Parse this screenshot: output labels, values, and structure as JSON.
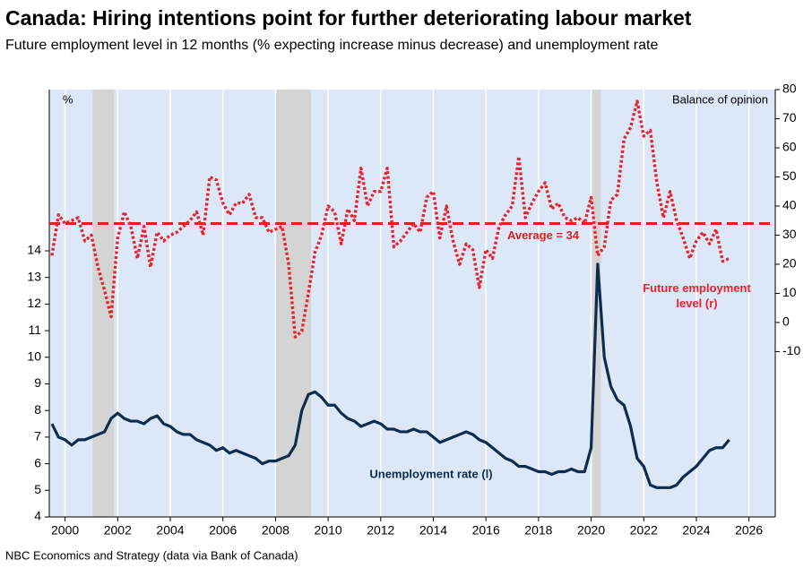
{
  "chart_data": {
    "type": "line",
    "title": "Canada: Hiring intentions point for further deteriorating labour market",
    "subtitle": "Future employment level in 12 months (% expecting increase minus decrease) and unemployment rate",
    "y_label": "%",
    "y2_label": "Balance of opinion",
    "source": "NBC Economics and Strategy (data via Bank of Canada)",
    "x": [
      1999.5,
      1999.75,
      2000,
      2000.25,
      2000.5,
      2000.75,
      2001,
      2001.25,
      2001.5,
      2001.75,
      2002,
      2002.25,
      2002.5,
      2002.75,
      2003,
      2003.25,
      2003.5,
      2003.75,
      2004,
      2004.25,
      2004.5,
      2004.75,
      2005,
      2005.25,
      2005.5,
      2005.75,
      2006,
      2006.25,
      2006.5,
      2006.75,
      2007,
      2007.25,
      2007.5,
      2007.75,
      2008,
      2008.25,
      2008.5,
      2008.75,
      2009,
      2009.25,
      2009.5,
      2009.75,
      2010,
      2010.25,
      2010.5,
      2010.75,
      2011,
      2011.25,
      2011.5,
      2011.75,
      2012,
      2012.25,
      2012.5,
      2012.75,
      2013,
      2013.25,
      2013.5,
      2013.75,
      2014,
      2014.25,
      2014.5,
      2014.75,
      2015,
      2015.25,
      2015.5,
      2015.75,
      2016,
      2016.25,
      2016.5,
      2016.75,
      2017,
      2017.25,
      2017.5,
      2017.75,
      2018,
      2018.25,
      2018.5,
      2018.75,
      2019,
      2019.25,
      2019.5,
      2019.75,
      2020,
      2020.25,
      2020.5,
      2020.75,
      2021,
      2021.25,
      2021.5,
      2021.75,
      2022,
      2022.25,
      2022.5,
      2022.75,
      2023,
      2023.25,
      2023.5,
      2023.75,
      2024,
      2024.25,
      2024.5,
      2024.75,
      2025,
      2025.25
    ],
    "series": [
      {
        "name": "Unemployment rate (l)",
        "color": "#0d2d4e",
        "axis": "y",
        "line_style": "solid",
        "values": [
          7.5,
          7.0,
          6.9,
          6.7,
          6.9,
          6.9,
          7.0,
          7.1,
          7.2,
          7.7,
          7.9,
          7.7,
          7.6,
          7.6,
          7.5,
          7.7,
          7.8,
          7.5,
          7.4,
          7.2,
          7.1,
          7.1,
          6.9,
          6.8,
          6.7,
          6.5,
          6.6,
          6.4,
          6.5,
          6.4,
          6.3,
          6.2,
          6.0,
          6.1,
          6.1,
          6.2,
          6.3,
          6.7,
          8.0,
          8.6,
          8.7,
          8.5,
          8.2,
          8.2,
          7.9,
          7.7,
          7.6,
          7.4,
          7.5,
          7.6,
          7.5,
          7.3,
          7.3,
          7.2,
          7.2,
          7.3,
          7.2,
          7.2,
          7.0,
          6.8,
          6.9,
          7.0,
          7.1,
          7.2,
          7.1,
          6.9,
          6.8,
          6.6,
          6.4,
          6.2,
          6.1,
          5.9,
          5.9,
          5.8,
          5.7,
          5.7,
          5.6,
          5.7,
          5.7,
          5.8,
          5.7,
          5.7,
          6.6,
          13.5,
          10.0,
          8.9,
          8.4,
          8.2,
          7.4,
          6.2,
          5.9,
          5.2,
          5.1,
          5.1,
          5.1,
          5.2,
          5.5,
          5.7,
          5.9,
          6.2,
          6.5,
          6.6,
          6.6,
          6.9
        ]
      },
      {
        "name": "Future employment level (r)",
        "color": "#e8232b",
        "axis": "y2",
        "line_style": "dotted",
        "values": [
          23,
          37,
          34,
          35,
          36,
          28,
          30,
          19,
          11,
          2,
          29,
          38,
          33,
          22,
          33,
          19,
          31,
          28,
          30,
          31,
          33,
          35,
          38,
          30,
          50,
          49,
          41,
          37,
          41,
          41,
          44,
          36,
          36,
          31,
          32,
          33,
          20,
          -5,
          -3,
          10,
          24,
          30,
          40,
          38,
          27,
          39,
          35,
          53,
          40,
          45,
          45,
          53,
          26,
          28,
          31,
          34,
          31,
          43,
          45,
          29,
          40,
          28,
          20,
          27,
          25,
          12,
          25,
          22,
          33,
          37,
          40,
          57,
          36,
          41,
          45,
          48,
          39,
          41,
          36,
          35,
          36,
          34,
          43,
          23,
          26,
          42,
          44,
          63,
          67,
          76,
          64,
          66,
          48,
          36,
          45,
          35,
          29,
          22,
          28,
          31,
          27,
          32,
          21,
          22
        ]
      }
    ],
    "average": {
      "value": 34,
      "label": "Average = 34",
      "color": "#e02020"
    },
    "recessions": [
      [
        2001.05,
        2001.87
      ],
      [
        2007.99,
        2009.35
      ],
      [
        2020.03,
        2020.37
      ]
    ],
    "xlim": [
      1999.4,
      2027.0
    ],
    "xticks": [
      2000,
      2002,
      2004,
      2006,
      2008,
      2010,
      2012,
      2014,
      2016,
      2018,
      2020,
      2022,
      2024,
      2026
    ],
    "ylim": [
      4,
      20.06
    ],
    "yticks": [
      4,
      5,
      6,
      7,
      8,
      9,
      10,
      11,
      12,
      13,
      14
    ],
    "y2lim": [
      -66.8,
      80
    ],
    "y2ticks": [
      -10,
      0,
      10,
      20,
      30,
      40,
      50,
      60,
      70,
      80
    ],
    "grid": true
  }
}
